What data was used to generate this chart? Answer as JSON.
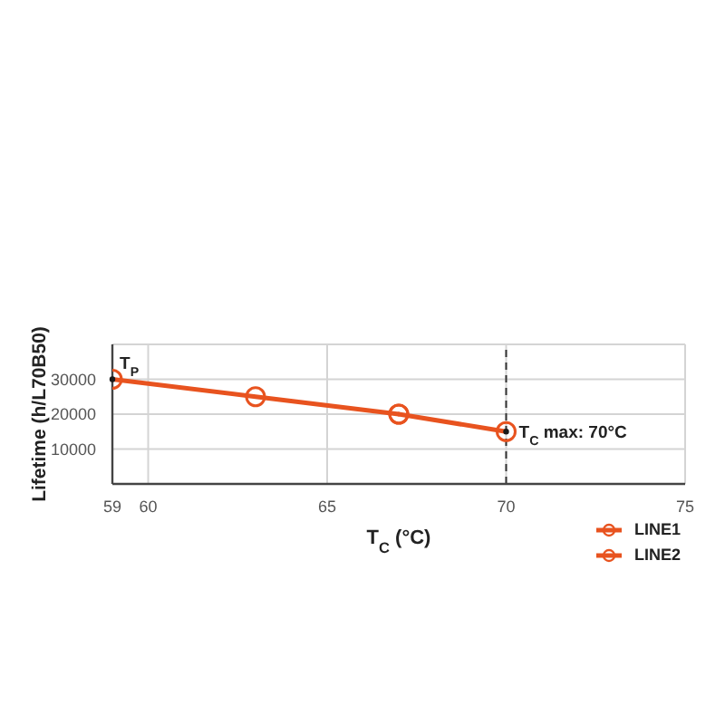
{
  "chart_data": {
    "type": "line",
    "xlabel": "T$_{C}$ (°C)",
    "ylabel": "Lifetime (h/L70B50)",
    "xlim": [
      59,
      75
    ],
    "xticks": [
      59,
      60,
      65,
      70,
      75
    ],
    "ylim": [
      0,
      40000
    ],
    "yticks": [
      10000,
      20000,
      30000,
      {
        "value": 40000,
        "label": null
      }
    ],
    "series": [
      {
        "name": "LINE1",
        "color": "#e8531f",
        "x": [
          59,
          63,
          67
        ],
        "values": [
          30000,
          25000,
          20000
        ]
      },
      {
        "name": "LINE2",
        "color": "#e8531f",
        "x": [
          67,
          70
        ],
        "values": [
          20000,
          15000
        ]
      }
    ],
    "ref_lines": [
      {
        "axis": "x",
        "value": 70,
        "color": "#333333",
        "line_style": "dashed"
      }
    ],
    "annotations": [
      {
        "text": "T$_{P}$",
        "x": 59,
        "y": 30000
      },
      {
        "text": "T$_{C}$ max: 70°C",
        "x": 70,
        "y": 15000
      }
    ],
    "grid": true,
    "legend": "bottom right",
    "marker": "circle",
    "line_style": "solid"
  }
}
